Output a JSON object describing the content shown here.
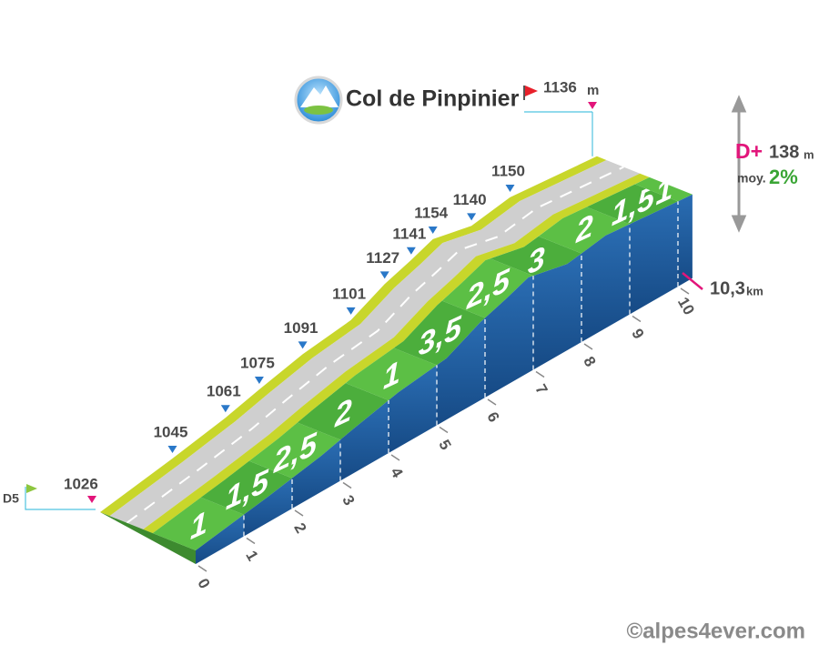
{
  "chart_data": {
    "type": "elevation-profile",
    "title": "Col de Pinpinier",
    "summit": {
      "altitude": 1136,
      "unit": "m"
    },
    "start": {
      "road": "D5",
      "altitude": 1026
    },
    "waypoints": {
      "x": [
        1.5,
        2.6,
        3.3,
        4.2,
        5.2,
        5.9,
        6.45,
        6.9,
        7.7,
        8.5
      ],
      "altitudes": [
        1045,
        1061,
        1075,
        1091,
        1101,
        1127,
        1141,
        1154,
        1140,
        1150
      ]
    },
    "distance": {
      "value": 10.3,
      "label": "10,3",
      "unit": "km"
    },
    "ascent": {
      "label": "D+",
      "value": 138,
      "unit": "m"
    },
    "average": {
      "label": "moy.",
      "value": 2,
      "value_label": "2%"
    },
    "xlim": [
      0,
      10.3
    ],
    "xticks": [
      0,
      1,
      2,
      3,
      4,
      5,
      6,
      7,
      8,
      9,
      10
    ],
    "gradients": {
      "values": [
        1,
        1.5,
        2.5,
        2,
        1,
        3.5,
        2.5,
        3,
        2,
        1.5,
        1
      ],
      "value_labels": [
        "1",
        "1,5",
        "2,5",
        "2",
        "1",
        "3,5",
        "2,5",
        "3",
        "2",
        "1,5",
        "1"
      ]
    },
    "credit": "©alpes4ever.com"
  }
}
